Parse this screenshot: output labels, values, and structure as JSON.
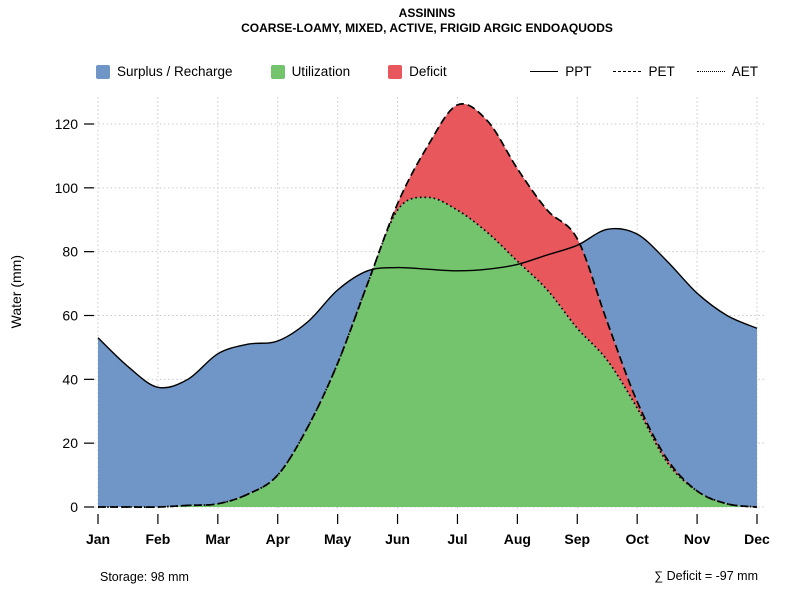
{
  "title": "ASSININS",
  "subtitle": "COARSE-LOAMY, MIXED, ACTIVE, FRIGID ARGIC ENDOAQUODS",
  "ylabel": "Water (mm)",
  "legend": {
    "areas": [
      {
        "key": "surplus",
        "label": "Surplus / Recharge",
        "color": "#6f96c6"
      },
      {
        "key": "utilization",
        "label": "Utilization",
        "color": "#74c36d"
      },
      {
        "key": "deficit",
        "label": "Deficit",
        "color": "#e7575c"
      }
    ],
    "lines": [
      {
        "key": "ppt",
        "label": "PPT",
        "style": "solid"
      },
      {
        "key": "pet",
        "label": "PET",
        "style": "dashed"
      },
      {
        "key": "aet",
        "label": "AET",
        "style": "dotted"
      }
    ]
  },
  "footer": {
    "storage": "Storage: 98 mm",
    "deficit": "∑ Deficit = -97 mm"
  },
  "chart_data": {
    "type": "area",
    "title": "ASSININS",
    "subtitle": "COARSE-LOAMY, MIXED, ACTIVE, FRIGID ARGIC ENDOAQUODS",
    "xlabel": "",
    "ylabel": "Water (mm)",
    "categories": [
      "Jan",
      "Feb",
      "Mar",
      "Apr",
      "May",
      "Jun",
      "Jul",
      "Aug",
      "Sep",
      "Oct",
      "Nov",
      "Dec"
    ],
    "yticks": [
      0,
      20,
      40,
      60,
      80,
      100,
      120
    ],
    "ylim": [
      0,
      128
    ],
    "grid": true,
    "legend_position": "top",
    "x_months": [
      0,
      0.5,
      1,
      1.5,
      2,
      2.5,
      3,
      3.5,
      4,
      4.5,
      5,
      5.5,
      6,
      6.5,
      7,
      7.5,
      8,
      8.5,
      9,
      9.5,
      10,
      10.5,
      11
    ],
    "series": [
      {
        "name": "PPT",
        "style": "solid",
        "values": [
          53,
          44,
          37.5,
          40,
          48,
          51,
          52,
          58,
          68,
          74,
          75,
          74.5,
          74,
          74.5,
          76,
          79,
          82,
          87,
          85.5,
          77,
          67,
          60,
          56
        ]
      },
      {
        "name": "PET",
        "style": "dashed",
        "values": [
          0,
          0,
          0,
          0.5,
          1,
          4,
          10,
          25,
          45,
          70,
          95,
          113,
          126,
          121,
          106,
          93,
          84,
          58,
          33,
          15,
          5,
          1,
          0
        ]
      },
      {
        "name": "AET",
        "style": "dotted",
        "values": [
          0,
          0,
          0,
          0.5,
          1,
          4,
          10,
          25,
          45,
          70,
          93,
          97,
          93,
          86,
          77,
          68,
          56,
          46,
          31,
          14,
          5,
          1,
          0
        ]
      }
    ],
    "areas": [
      {
        "key": "surplus",
        "name": "Surplus / Recharge",
        "between": [
          "PET",
          "PPT"
        ],
        "color": "#6f96c6"
      },
      {
        "key": "utilization",
        "name": "Utilization",
        "between": [
          "zero",
          "AET"
        ],
        "color": "#74c36d"
      },
      {
        "key": "deficit",
        "name": "Deficit",
        "between": [
          "AET",
          "PET"
        ],
        "color": "#e7575c"
      }
    ],
    "annotations": {
      "storage_mm": 98,
      "deficit_sum_mm": -97
    }
  }
}
